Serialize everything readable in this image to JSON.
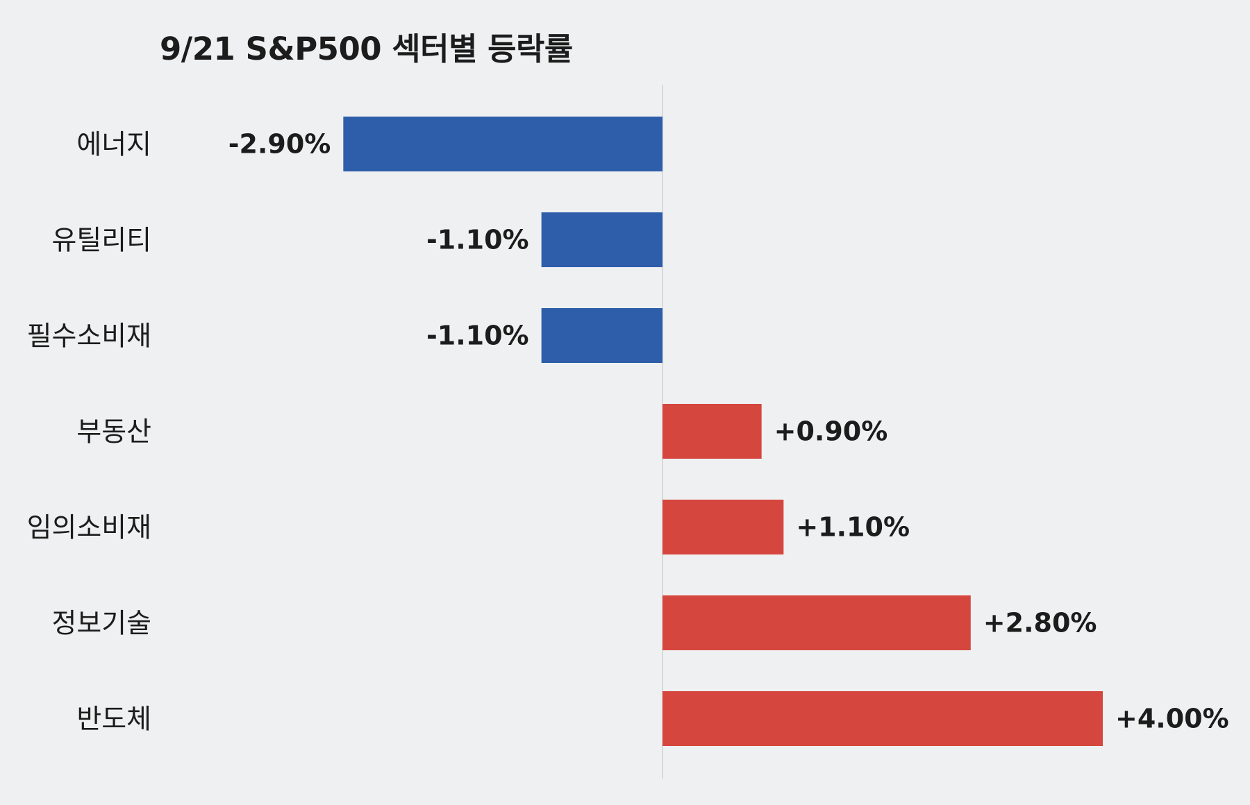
{
  "chart_data": {
    "type": "bar",
    "orientation": "horizontal",
    "title": "9/21 S&P500 섹터별 등락률",
    "categories": [
      "에너지",
      "유틸리티",
      "필수소비재",
      "부동산",
      "임의소비재",
      "정보기술",
      "반도체"
    ],
    "values": [
      -2.9,
      -1.1,
      -1.1,
      0.9,
      1.1,
      2.8,
      4.0
    ],
    "value_labels": [
      "-2.90%",
      "-1.10%",
      "-1.10%",
      "+0.90%",
      "+1.10%",
      "+2.80%",
      "+4.00%"
    ],
    "xlim": [
      -4.4,
      5.0
    ],
    "grid": false,
    "legend": "none",
    "colors": {
      "negative": "#2e5ea9",
      "positive": "#d4463e",
      "zero_line": "#d8d9db",
      "background": "#eff0f1"
    }
  }
}
